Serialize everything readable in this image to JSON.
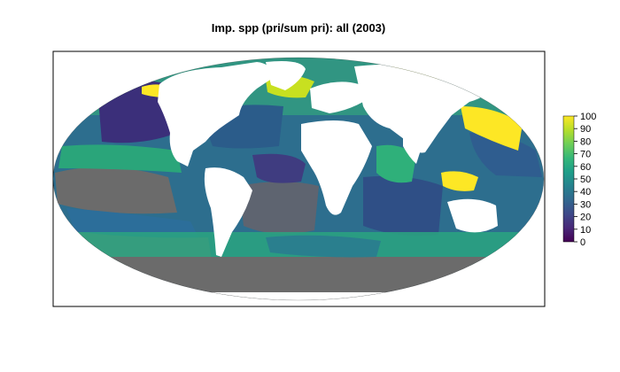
{
  "title": "Imp. spp (pri/sum pri): all (2003)",
  "chart_data": {
    "type": "heatmap",
    "projection": "Mollweide",
    "title": "Imp. spp (pri/sum pri): all (2003)",
    "colorbar": {
      "range": [
        0,
        100
      ],
      "ticks": [
        "0",
        "10",
        "20",
        "30",
        "40",
        "50",
        "60",
        "70",
        "80",
        "90",
        "100"
      ],
      "colormap": [
        "#440154",
        "#482878",
        "#3e4989",
        "#31688e",
        "#26828e",
        "#1f9e89",
        "#35b779",
        "#6ece58",
        "#b5de2b",
        "#fde725"
      ],
      "placement": "right"
    },
    "colors": {
      "land": "#ffffff",
      "no_data": "#6b6b6b",
      "frame": "#000000"
    }
  }
}
